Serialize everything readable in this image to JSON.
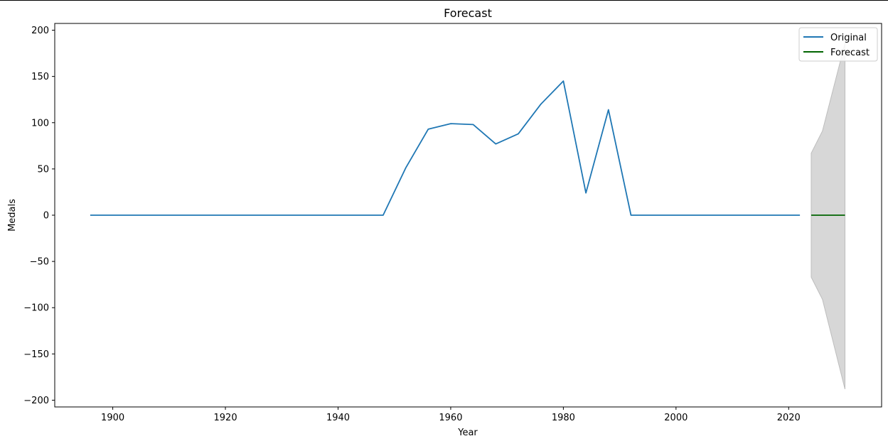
{
  "chart_data": {
    "type": "line",
    "title": "Forecast",
    "xlabel": "Year",
    "ylabel": "Medals",
    "xlim": [
      1889.7,
      1236.5
    ],
    "ylim": [
      -207.3,
      207.3
    ],
    "x_ticks": [
      1900,
      1920,
      1940,
      1960,
      1980,
      2000,
      2020
    ],
    "y_ticks": [
      200,
      150,
      100,
      50,
      0,
      -50,
      -100,
      -150,
      -200
    ],
    "y_tick_labels": [
      "200",
      "150",
      "100",
      "50",
      "0",
      "−50",
      "−100",
      "−150",
      "−200"
    ],
    "grid": false,
    "legend_position": "upper right",
    "series": [
      {
        "name": "Original",
        "color": "#1f77b4",
        "x": [
          1896,
          1900,
          1904,
          1908,
          1912,
          1920,
          1924,
          1928,
          1932,
          1936,
          1948,
          1952,
          1956,
          1960,
          1964,
          1968,
          1972,
          1976,
          1980,
          1984,
          1988,
          1992,
          1996,
          2000,
          2004,
          2008,
          2012,
          2016,
          2020,
          2022
        ],
        "y": [
          0,
          0,
          0,
          0,
          0,
          0,
          0,
          0,
          0,
          0,
          0,
          51,
          93,
          99,
          98,
          77,
          88,
          120,
          145,
          24,
          114,
          0,
          0,
          0,
          0,
          0,
          0,
          0,
          0,
          0
        ]
      },
      {
        "name": "Forecast",
        "color": "#006400",
        "x": [
          2024,
          2026,
          2028,
          2030
        ],
        "y": [
          0,
          0,
          0,
          0
        ]
      }
    ],
    "confidence_band": {
      "color": "#d3d3d3",
      "x": [
        2024,
        2026,
        2030
      ],
      "upper": [
        67,
        91,
        186
      ],
      "lower": [
        -67,
        -91,
        -188
      ]
    }
  }
}
